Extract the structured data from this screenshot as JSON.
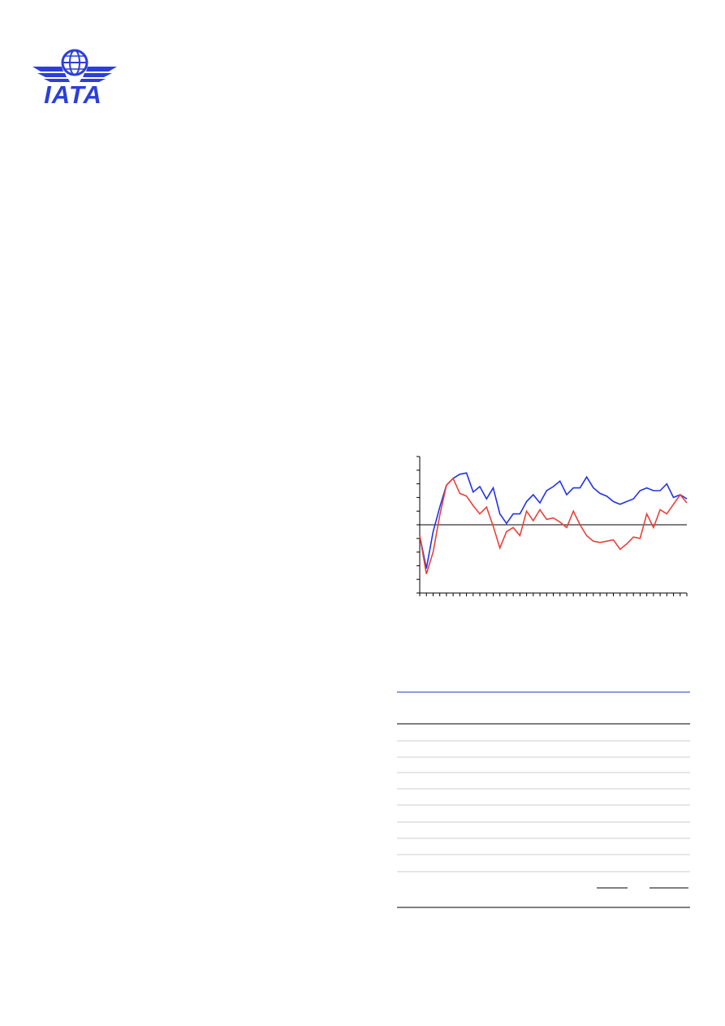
{
  "logo": {
    "text": "IATA"
  },
  "chart_data": {
    "type": "line",
    "categories": [
      null,
      null,
      null,
      null,
      null,
      null,
      null,
      null,
      null,
      null,
      null,
      null,
      null,
      null,
      null,
      null,
      null,
      null,
      null,
      null,
      null,
      null,
      null,
      null,
      null,
      null,
      null,
      null,
      null,
      null,
      null,
      null,
      null,
      null,
      null,
      null,
      null,
      null,
      null,
      null,
      null
    ],
    "series": [
      {
        "color": "#2233e6",
        "values": [
          -0.8,
          -3.2,
          -0.5,
          1.3,
          2.9,
          3.4,
          3.7,
          3.8,
          2.4,
          2.8,
          1.9,
          2.7,
          0.8,
          0.1,
          0.8,
          0.8,
          1.7,
          2.2,
          1.6,
          2.5,
          2.8,
          3.2,
          2.2,
          2.7,
          2.7,
          3.5,
          2.7,
          2.3,
          2.1,
          1.7,
          1.5,
          1.7,
          1.9,
          2.5,
          2.7,
          2.5,
          2.5,
          3.0,
          2.0,
          2.2,
          1.9
        ]
      },
      {
        "color": "#e8413a",
        "values": [
          -0.8,
          -3.6,
          -2.0,
          0.7,
          2.9,
          3.4,
          2.3,
          2.1,
          1.4,
          0.8,
          1.3,
          -0.1,
          -1.7,
          -0.5,
          -0.2,
          -0.8,
          1.0,
          0.3,
          1.1,
          0.4,
          0.5,
          0.2,
          -0.2,
          1.0,
          0,
          -0.8,
          -1.2,
          -1.3,
          -1.2,
          -1.1,
          -1.8,
          -1.4,
          -0.9,
          -1.0,
          0.8,
          -0.2,
          1.1,
          0.8,
          1.5,
          2.2,
          1.6
        ]
      }
    ],
    "ylim": [
      -5,
      5
    ],
    "yticks": [
      -5,
      -4,
      -3,
      -2,
      -1,
      0,
      1,
      2,
      3,
      4,
      5
    ]
  }
}
